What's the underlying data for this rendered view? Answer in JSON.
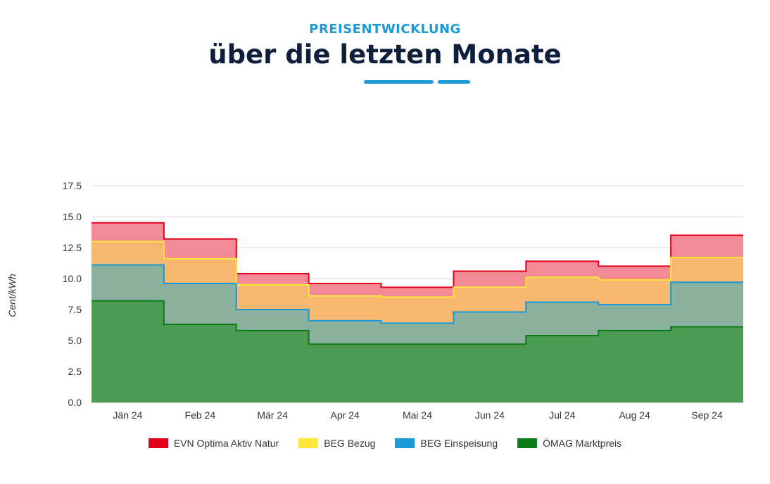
{
  "header": {
    "kicker": "PREISENTWICKLUNG",
    "title": "über die letzten Monate"
  },
  "chart_data": {
    "type": "area",
    "ylabel": "Cent/kWh",
    "xlabel": "",
    "ylim": [
      0,
      17.5
    ],
    "yticks": [
      "0.0",
      "2.5",
      "5.0",
      "7.5",
      "10.0",
      "12.5",
      "15.0",
      "17.5"
    ],
    "categories": [
      "Jän 24",
      "Feb 24",
      "Mär 24",
      "Apr 24",
      "Mai 24",
      "Jun 24",
      "Jul 24",
      "Aug 24",
      "Sep 24"
    ],
    "grid": true,
    "step": true,
    "legend_position": "bottom",
    "series": [
      {
        "name": "EVN Optima Aktiv Natur",
        "color": "#e3001b",
        "fill": "#f28b96",
        "values": [
          14.5,
          13.2,
          10.4,
          9.6,
          9.3,
          10.6,
          11.4,
          11.0,
          13.5
        ]
      },
      {
        "name": "BEG Bezug",
        "color": "#ffe63a",
        "fill": "#f6b870",
        "values": [
          13.0,
          11.6,
          9.5,
          8.6,
          8.5,
          9.3,
          10.1,
          9.9,
          11.7
        ]
      },
      {
        "name": "BEG Einspeisung",
        "color": "#1a9ad6",
        "fill": "#8bb09e",
        "values": [
          11.1,
          9.6,
          7.5,
          6.6,
          6.4,
          7.3,
          8.1,
          7.9,
          9.7
        ]
      },
      {
        "name": "ÖMAG Marktpreis",
        "color": "#0a7d18",
        "fill": "#4d9a53",
        "values": [
          8.2,
          6.3,
          5.8,
          4.7,
          4.7,
          4.7,
          5.4,
          5.8,
          6.1
        ]
      }
    ]
  }
}
